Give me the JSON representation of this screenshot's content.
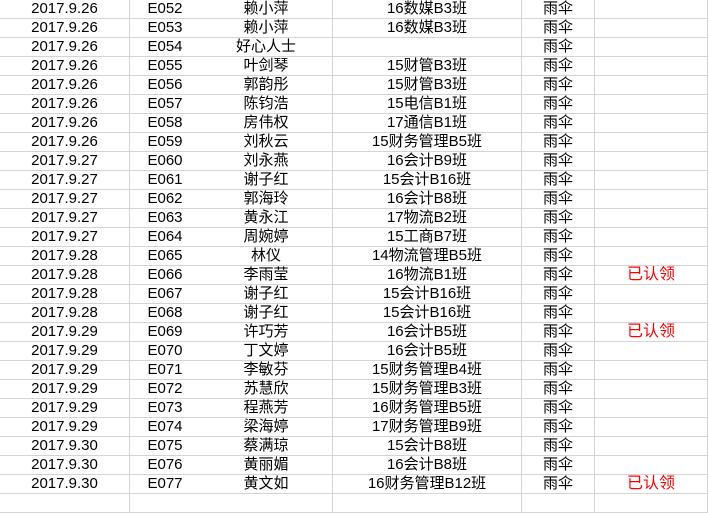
{
  "status_color": "#ff0000",
  "rows": [
    {
      "date": "2017.9.26",
      "id": "E052",
      "name": "赖小萍",
      "class": "16数媒B3班",
      "item": "雨伞",
      "status": ""
    },
    {
      "date": "2017.9.26",
      "id": "E053",
      "name": "赖小萍",
      "class": "16数媒B3班",
      "item": "雨伞",
      "status": ""
    },
    {
      "date": "2017.9.26",
      "id": "E054",
      "name": "好心人士",
      "class": "",
      "item": "雨伞",
      "status": ""
    },
    {
      "date": "2017.9.26",
      "id": "E055",
      "name": "叶剑琴",
      "class": "15财管B3班",
      "item": "雨伞",
      "status": ""
    },
    {
      "date": "2017.9.26",
      "id": "E056",
      "name": "郭韵彤",
      "class": "15财管B3班",
      "item": "雨伞",
      "status": ""
    },
    {
      "date": "2017.9.26",
      "id": "E057",
      "name": "陈钧浩",
      "class": "15电信B1班",
      "item": "雨伞",
      "status": ""
    },
    {
      "date": "2017.9.26",
      "id": "E058",
      "name": "房伟权",
      "class": "17通信B1班",
      "item": "雨伞",
      "status": ""
    },
    {
      "date": "2017.9.26",
      "id": "E059",
      "name": "刘秋云",
      "class": "15财务管理B5班",
      "item": "雨伞",
      "status": ""
    },
    {
      "date": "2017.9.27",
      "id": "E060",
      "name": "刘永燕",
      "class": "16会计B9班",
      "item": "雨伞",
      "status": ""
    },
    {
      "date": "2017.9.27",
      "id": "E061",
      "name": "谢子红",
      "class": "15会计B16班",
      "item": "雨伞",
      "status": ""
    },
    {
      "date": "2017.9.27",
      "id": "E062",
      "name": "郭海玲",
      "class": "16会计B8班",
      "item": "雨伞",
      "status": ""
    },
    {
      "date": "2017.9.27",
      "id": "E063",
      "name": "黄永江",
      "class": "17物流B2班",
      "item": "雨伞",
      "status": ""
    },
    {
      "date": "2017.9.27",
      "id": "E064",
      "name": "周婉婷",
      "class": "15工商B7班",
      "item": "雨伞",
      "status": ""
    },
    {
      "date": "2017.9.28",
      "id": "E065",
      "name": "林仪",
      "class": "14物流管理B5班",
      "item": "雨伞",
      "status": ""
    },
    {
      "date": "2017.9.28",
      "id": "E066",
      "name": "李雨莹",
      "class": "16物流B1班",
      "item": "雨伞",
      "status": "已认领"
    },
    {
      "date": "2017.9.28",
      "id": "E067",
      "name": "谢子红",
      "class": "15会计B16班",
      "item": "雨伞",
      "status": ""
    },
    {
      "date": "2017.9.28",
      "id": "E068",
      "name": "谢子红",
      "class": "15会计B16班",
      "item": "雨伞",
      "status": ""
    },
    {
      "date": "2017.9.29",
      "id": "E069",
      "name": "许巧芳",
      "class": "16会计B5班",
      "item": "雨伞",
      "status": "已认领"
    },
    {
      "date": "2017.9.29",
      "id": "E070",
      "name": "丁文婷",
      "class": "16会计B5班",
      "item": "雨伞",
      "status": ""
    },
    {
      "date": "2017.9.29",
      "id": "E071",
      "name": "李敏芬",
      "class": "15财务管理B4班",
      "item": "雨伞",
      "status": ""
    },
    {
      "date": "2017.9.29",
      "id": "E072",
      "name": "苏慧欣",
      "class": "15财务管理B3班",
      "item": "雨伞",
      "status": ""
    },
    {
      "date": "2017.9.29",
      "id": "E073",
      "name": "程燕芳",
      "class": "16财务管理B5班",
      "item": "雨伞",
      "status": ""
    },
    {
      "date": "2017.9.29",
      "id": "E074",
      "name": "梁海婷",
      "class": "17财务管理B9班",
      "item": "雨伞",
      "status": ""
    },
    {
      "date": "2017.9.30",
      "id": "E075",
      "name": "蔡满琼",
      "class": "15会计B8班",
      "item": "雨伞",
      "status": ""
    },
    {
      "date": "2017.9.30",
      "id": "E076",
      "name": "黄丽媚",
      "class": "16会计B8班",
      "item": "雨伞",
      "status": ""
    },
    {
      "date": "2017.9.30",
      "id": "E077",
      "name": "黄文如",
      "class": "16财务管理B12班",
      "item": "雨伞",
      "status": "已认领"
    }
  ]
}
